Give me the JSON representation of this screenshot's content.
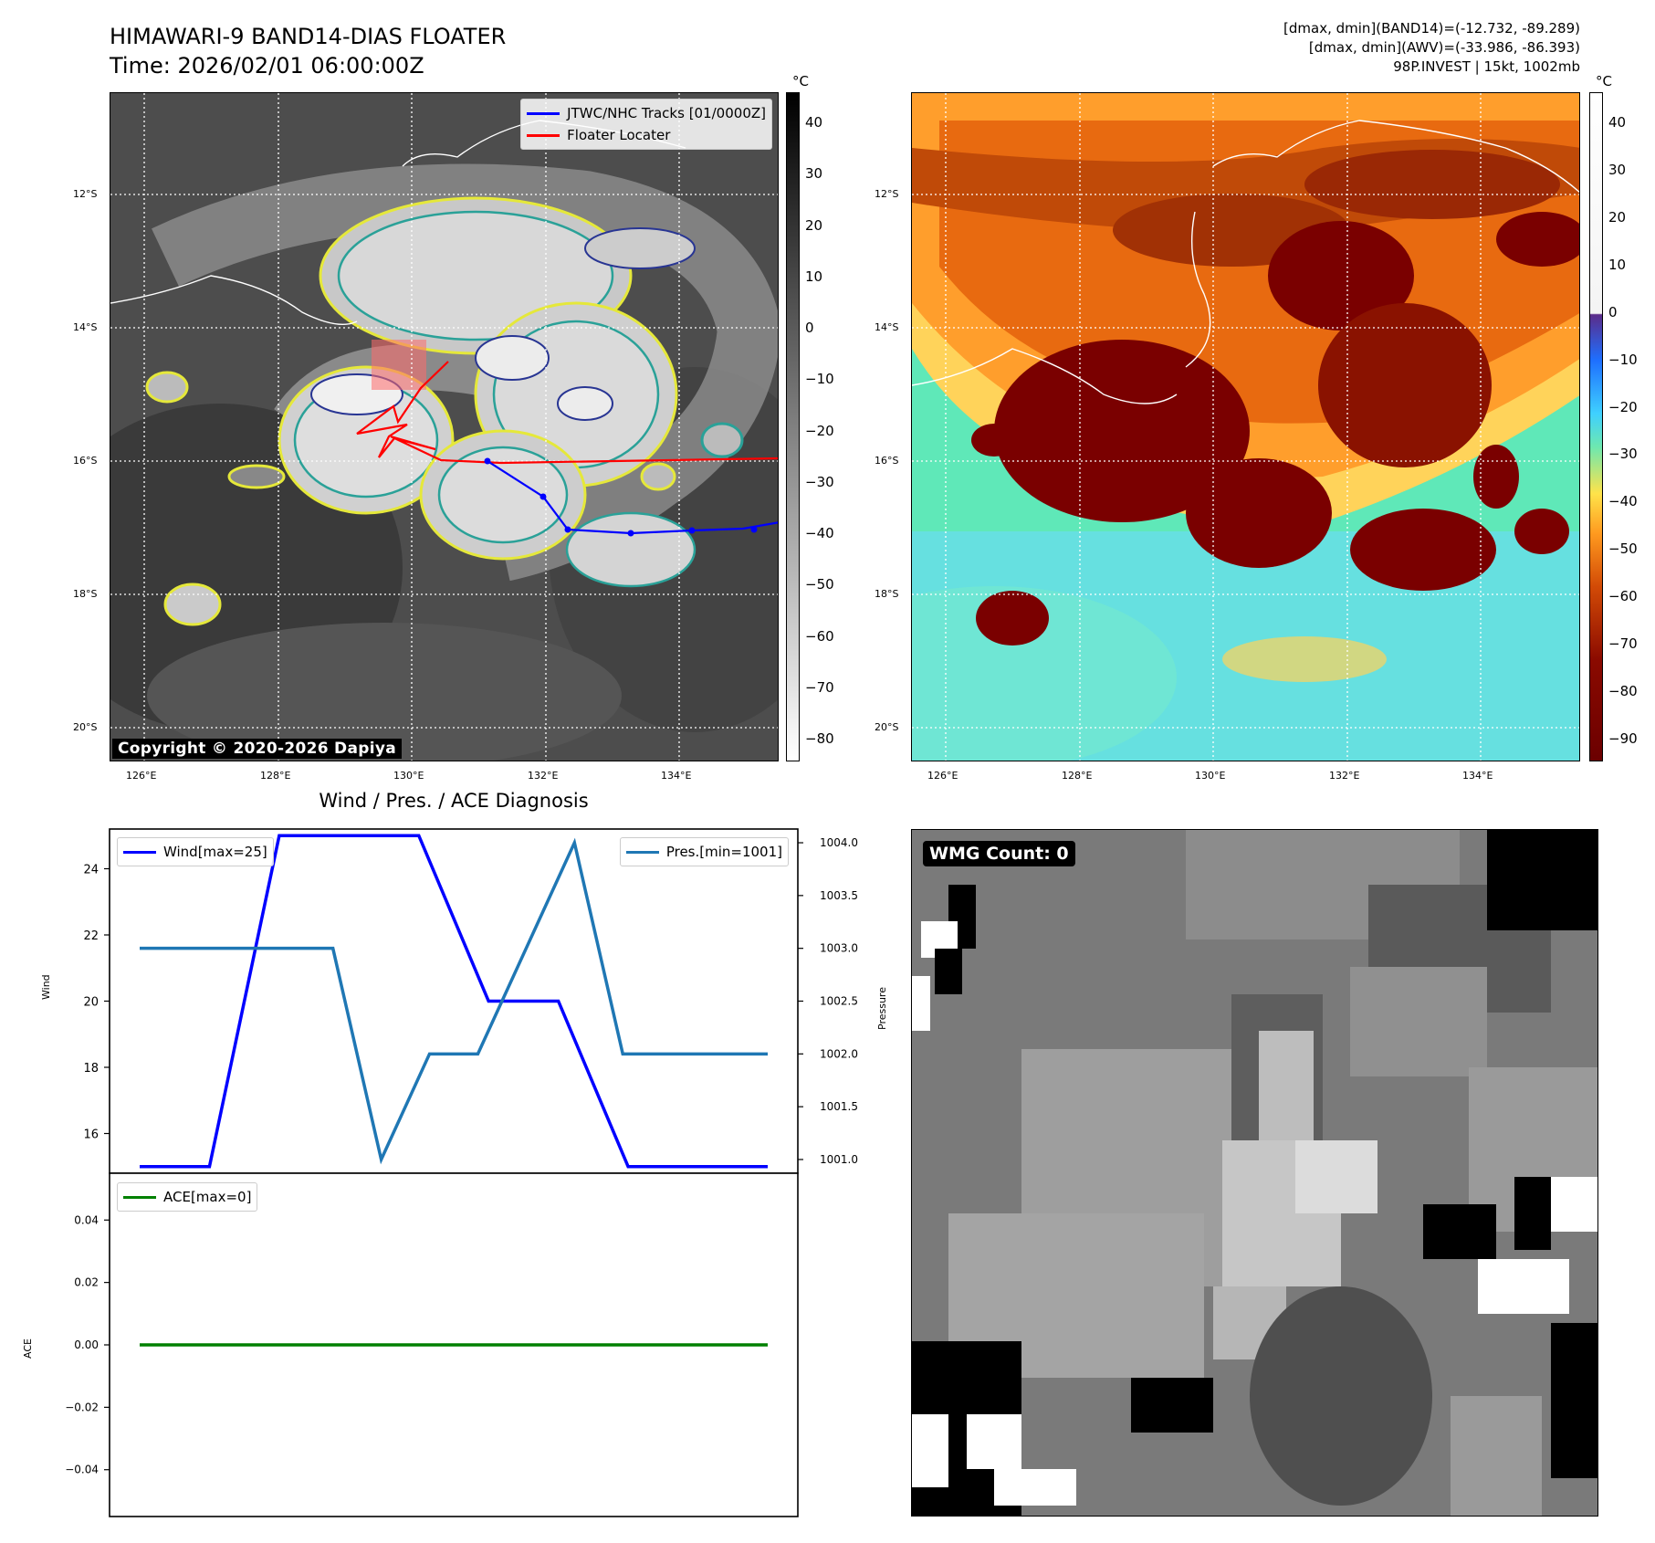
{
  "header": {
    "title_line1": "HIMAWARI-9 BAND14-DIAS FLOATER",
    "title_line2": "Time: 2026/02/01 06:00:00Z",
    "info_line1": "[dmax, dmin](BAND14)=(-12.732, -89.289)",
    "info_line2": "[dmax, dmin](AWV)=(-33.986, -86.393)",
    "info_line3": "98P.INVEST | 15kt, 1002mb"
  },
  "map_axes": {
    "lon_labels": [
      "126°E",
      "128°E",
      "130°E",
      "132°E",
      "134°E"
    ],
    "lat_labels": [
      "12°S",
      "14°S",
      "16°S",
      "18°S",
      "20°S"
    ]
  },
  "ir_panel": {
    "copyright": "Copyright © 2020-2026 Dapiya",
    "legend": [
      {
        "label": "JTWC/NHC Tracks [01/0000Z]",
        "color": "#0000ff"
      },
      {
        "label": "Floater Locater",
        "color": "#ff0000"
      }
    ],
    "colorbar": {
      "unit": "°C",
      "ticks": [
        "40",
        "30",
        "20",
        "10",
        "0",
        "−10",
        "−20",
        "−30",
        "−40",
        "−50",
        "−60",
        "−70",
        "−80"
      ]
    }
  },
  "awv_panel": {
    "colorbar": {
      "unit": "°C",
      "ticks": [
        "40",
        "30",
        "20",
        "10",
        "0",
        "−10",
        "−20",
        "−30",
        "−40",
        "−50",
        "−60",
        "−70",
        "−80",
        "−90"
      ]
    }
  },
  "wmg_panel": {
    "label": "WMG Count: 0"
  },
  "colors": {
    "wind": "#0000ff",
    "pressure": "#1f77b4",
    "ace": "#008000",
    "track": "#0000ff",
    "floater": "#ff0000"
  },
  "chart_data": [
    {
      "type": "line",
      "title": "Wind / Pres. / ACE Diagnosis",
      "ylabel": "Wind",
      "ylabel_right": "Pressure",
      "series": [
        {
          "name": "Wind[max=25]",
          "values": [
            15,
            15,
            25,
            25,
            25,
            25,
            20,
            20,
            20,
            15,
            15,
            15
          ],
          "axis": "left"
        },
        {
          "name": "Pres.[min=1001]",
          "values": [
            1003,
            1003,
            1003,
            1003,
            1003,
            1001,
            1002,
            1002,
            1003,
            1004,
            1002,
            1002,
            1002
          ],
          "axis": "right"
        }
      ],
      "wind_x": [
        0,
        1,
        2,
        2.5,
        3,
        4,
        5,
        5.5,
        6,
        7,
        8,
        9
      ],
      "pres_x": [
        0,
        1,
        2,
        3,
        4,
        5,
        6,
        7,
        8,
        9,
        10,
        11,
        13
      ],
      "ylim": [
        14.8,
        25.2
      ],
      "ylim_right": [
        1000.87,
        1004.13
      ],
      "yticks": [
        "24",
        "22",
        "20",
        "18",
        "16"
      ],
      "yticks_right": [
        "1004.0",
        "1003.5",
        "1003.0",
        "1002.5",
        "1002.0",
        "1001.5",
        "1001.0"
      ]
    },
    {
      "type": "line",
      "ylabel": "ACE",
      "series": [
        {
          "name": "ACE[max=0]",
          "values": [
            0,
            0
          ]
        }
      ],
      "ylim": [
        -0.055,
        0.055
      ],
      "yticks": [
        "0.04",
        "0.02",
        "0.00",
        "−0.02",
        "−0.04"
      ]
    }
  ]
}
